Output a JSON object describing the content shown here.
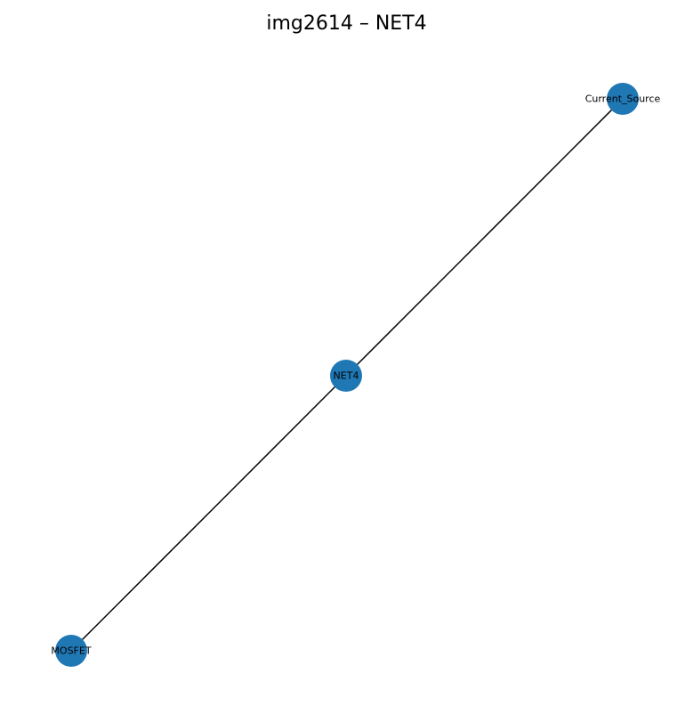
{
  "title": "img2614 – NET4",
  "colors": {
    "node_fill": "#1f77b4",
    "edge": "#000000",
    "background": "#ffffff"
  },
  "graph": {
    "nodes": [
      {
        "id": "Current_Source",
        "label": "Current_Source"
      },
      {
        "id": "NET4",
        "label": "NET4"
      },
      {
        "id": "MOSFET",
        "label": "MOSFET"
      }
    ],
    "edges": [
      {
        "source": "NET4",
        "target": "Current_Source"
      },
      {
        "source": "NET4",
        "target": "MOSFET"
      }
    ]
  }
}
